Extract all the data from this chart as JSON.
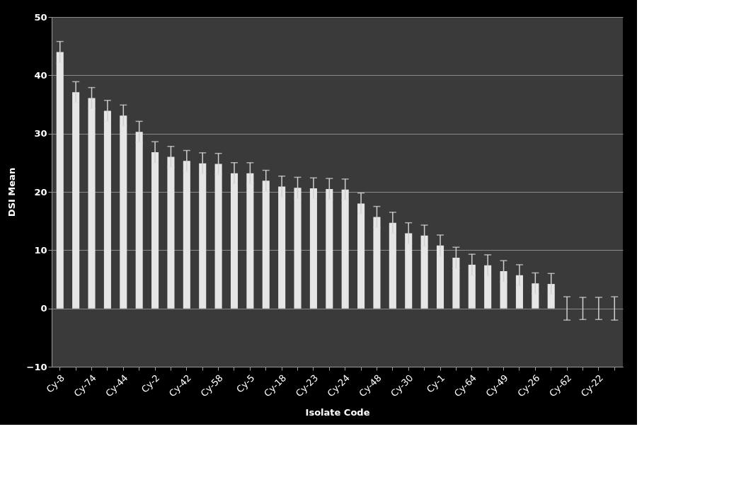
{
  "chart_data": {
    "type": "bar",
    "xlabel": "Isolate Code",
    "ylabel": "DSI Mean",
    "categories": [
      "Cy-8",
      null,
      "Cy-74",
      null,
      "Cy-44",
      null,
      "Cy-2",
      null,
      "Cy-42",
      null,
      "Cy-58",
      null,
      "Cy-5",
      null,
      "Cy-18",
      null,
      "Cy-23",
      null,
      "Cy-24",
      null,
      "Cy-48",
      null,
      "Cy-30",
      null,
      "Cy-1",
      null,
      "Cy-64",
      null,
      "Cy-49",
      null,
      "Cy-26",
      null,
      "Cy-62",
      null,
      "Cy-22",
      null
    ],
    "values": [
      44,
      37.1,
      36.1,
      33.9,
      33.1,
      30.3,
      26.8,
      26,
      25.3,
      24.9,
      24.8,
      23.2,
      23.2,
      21.9,
      20.9,
      20.7,
      20.6,
      20.5,
      20.4,
      18,
      15.7,
      14.7,
      12.9,
      12.5,
      10.8,
      8.7,
      7.5,
      7.4,
      6.4,
      5.7,
      4.3,
      4.2,
      0,
      0,
      0,
      0
    ],
    "errors": [
      1.8,
      1.8,
      1.8,
      1.8,
      1.8,
      1.8,
      1.8,
      1.8,
      1.8,
      1.8,
      1.8,
      1.8,
      1.8,
      1.8,
      1.8,
      1.8,
      1.8,
      1.8,
      1.8,
      1.8,
      1.8,
      1.8,
      1.8,
      1.8,
      1.8,
      1.8,
      1.8,
      1.8,
      1.8,
      1.8,
      1.8,
      1.8,
      2,
      1.9,
      1.9,
      2
    ],
    "color": "#e6e6e6",
    "ylim": [
      -10,
      50
    ],
    "yticks": [
      -10,
      0,
      10,
      20,
      30,
      40,
      50
    ],
    "grid": "y"
  }
}
